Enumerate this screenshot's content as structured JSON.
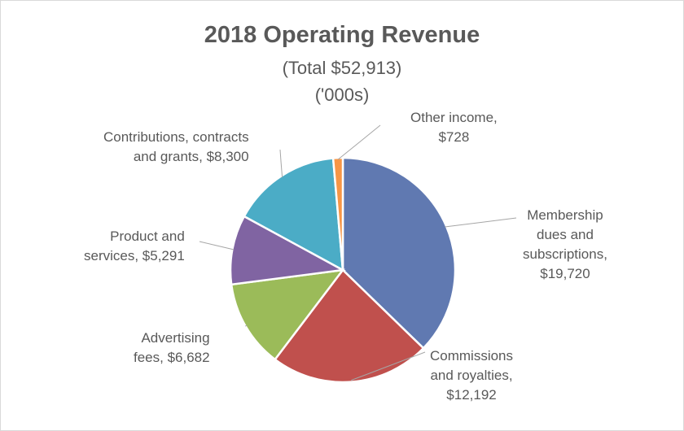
{
  "chart_data": {
    "type": "pie",
    "title": "2018 Operating Revenue",
    "subtitle": "(Total $52,913)",
    "unit_note": "('000s)",
    "total": 52913,
    "start": "12 o'clock, clockwise",
    "slices": [
      {
        "name": "Membership dues and subscriptions",
        "value": 19720,
        "color": "#6079b1",
        "label_lines": [
          "Membership",
          "dues and",
          "subscriptions,",
          "$19,720"
        ]
      },
      {
        "name": "Commissions and royalties",
        "value": 12192,
        "color": "#c0504d",
        "label_lines": [
          "Commissions",
          "and royalties,",
          "$12,192"
        ]
      },
      {
        "name": "Advertising fees",
        "value": 6682,
        "color": "#9bbb59",
        "label_lines": [
          "Advertising",
          "fees, $6,682"
        ]
      },
      {
        "name": "Product and services",
        "value": 5291,
        "color": "#8064a2",
        "label_lines": [
          "Product and",
          "services, $5,291"
        ]
      },
      {
        "name": "Contributions, contracts and grants",
        "value": 8300,
        "color": "#4bacc6",
        "label_lines": [
          "Contributions, contracts",
          "and grants, $8,300"
        ]
      },
      {
        "name": "Other income",
        "value": 728,
        "color": "#f79646",
        "label_lines": [
          "Other income,",
          "$728"
        ]
      }
    ]
  }
}
